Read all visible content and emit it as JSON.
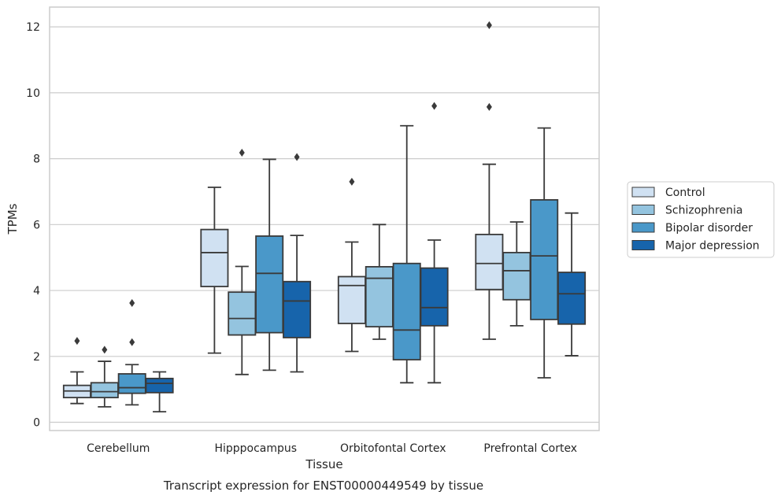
{
  "caption": "Transcript expression for ENST00000449549 by tissue",
  "chart_data": {
    "type": "box",
    "xlabel": "Tissue",
    "ylabel": "TPMs",
    "ylim": [
      -0.25,
      12.6
    ],
    "yticks": [
      0,
      2,
      4,
      6,
      8,
      10,
      12
    ],
    "grid": "horizontal",
    "legend_position": "right",
    "categories": [
      "Cerebellum",
      "Hipppocampus",
      "Orbitofontal Cortex",
      "Prefrontal Cortex"
    ],
    "series": [
      {
        "name": "Control",
        "color": "#d0e1f2",
        "boxes": [
          {
            "whislo": 0.57,
            "q1": 0.75,
            "med": 0.95,
            "q3": 1.12,
            "whishi": 1.53,
            "fliers": [
              2.47
            ]
          },
          {
            "whislo": 2.1,
            "q1": 4.12,
            "med": 5.15,
            "q3": 5.85,
            "whishi": 7.13,
            "fliers": []
          },
          {
            "whislo": 2.15,
            "q1": 3.0,
            "med": 4.15,
            "q3": 4.42,
            "whishi": 5.47,
            "fliers": [
              7.3
            ]
          },
          {
            "whislo": 2.52,
            "q1": 4.03,
            "med": 4.82,
            "q3": 5.7,
            "whishi": 7.83,
            "fliers": [
              9.57,
              12.05
            ]
          }
        ]
      },
      {
        "name": "Schizophrenia",
        "color": "#94c4df",
        "boxes": [
          {
            "whislo": 0.47,
            "q1": 0.75,
            "med": 0.93,
            "q3": 1.2,
            "whishi": 1.85,
            "fliers": [
              2.2
            ]
          },
          {
            "whislo": 1.45,
            "q1": 2.65,
            "med": 3.15,
            "q3": 3.95,
            "whishi": 4.73,
            "fliers": [
              8.18
            ]
          },
          {
            "whislo": 2.52,
            "q1": 2.9,
            "med": 4.37,
            "q3": 4.72,
            "whishi": 6.0,
            "fliers": []
          },
          {
            "whislo": 2.93,
            "q1": 3.72,
            "med": 4.6,
            "q3": 5.15,
            "whishi": 6.08,
            "fliers": []
          }
        ]
      },
      {
        "name": "Bipolar disorder",
        "color": "#4a98c9",
        "boxes": [
          {
            "whislo": 0.53,
            "q1": 0.88,
            "med": 1.05,
            "q3": 1.47,
            "whishi": 1.75,
            "fliers": [
              2.43,
              3.62
            ]
          },
          {
            "whislo": 1.58,
            "q1": 2.72,
            "med": 4.52,
            "q3": 5.65,
            "whishi": 7.98,
            "fliers": []
          },
          {
            "whislo": 1.2,
            "q1": 1.9,
            "med": 2.8,
            "q3": 4.82,
            "whishi": 9.0,
            "fliers": []
          },
          {
            "whislo": 1.35,
            "q1": 3.12,
            "med": 5.05,
            "q3": 6.75,
            "whishi": 8.93,
            "fliers": []
          }
        ]
      },
      {
        "name": "Major depression",
        "color": "#1764ab",
        "boxes": [
          {
            "whislo": 0.32,
            "q1": 0.9,
            "med": 1.18,
            "q3": 1.33,
            "whishi": 1.53,
            "fliers": []
          },
          {
            "whislo": 1.53,
            "q1": 2.57,
            "med": 3.68,
            "q3": 4.27,
            "whishi": 5.67,
            "fliers": [
              8.05
            ]
          },
          {
            "whislo": 1.2,
            "q1": 2.93,
            "med": 3.48,
            "q3": 4.68,
            "whishi": 5.53,
            "fliers": [
              9.6
            ]
          },
          {
            "whislo": 2.02,
            "q1": 2.98,
            "med": 3.9,
            "q3": 4.55,
            "whishi": 6.35,
            "fliers": []
          }
        ]
      }
    ]
  }
}
